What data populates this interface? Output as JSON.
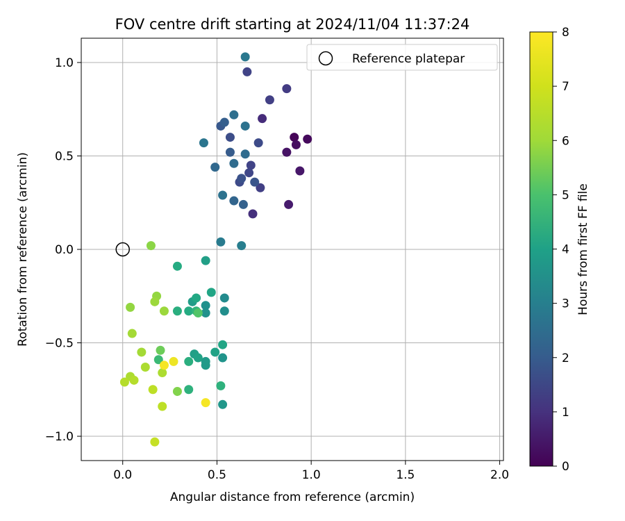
{
  "chart_data": {
    "type": "scatter",
    "title": "FOV centre drift starting at 2024/11/04 11:37:24",
    "xlabel": "Angular distance from reference (arcmin)",
    "ylabel": "Rotation from reference (arcmin)",
    "xlim": [
      -0.22,
      2.02
    ],
    "ylim": [
      -1.13,
      1.13
    ],
    "xticks": [
      0.0,
      0.5,
      1.0,
      1.5,
      2.0
    ],
    "xtick_labels": [
      "0.0",
      "0.5",
      "1.0",
      "1.5",
      "2.0"
    ],
    "yticks": [
      -1.0,
      -0.5,
      0.0,
      0.5,
      1.0
    ],
    "ytick_labels": [
      "−1.0",
      "−0.5",
      "0.0",
      "0.5",
      "1.0"
    ],
    "grid": true,
    "legend": {
      "placement": "top-right",
      "entries": [
        "Reference platepar"
      ]
    },
    "reference_point": {
      "x": 0.0,
      "y": 0.0
    },
    "colorbar": {
      "label": "Hours from first FF file",
      "range": [
        0,
        8
      ],
      "ticks": [
        0,
        1,
        2,
        3,
        4,
        5,
        6,
        7,
        8
      ],
      "tick_labels": [
        "0",
        "1",
        "2",
        "3",
        "4",
        "5",
        "6",
        "7",
        "8"
      ],
      "colormap": "viridis"
    },
    "points": [
      {
        "x": 0.91,
        "y": 0.6,
        "h": 0.1
      },
      {
        "x": 0.98,
        "y": 0.59,
        "h": 0.2
      },
      {
        "x": 0.92,
        "y": 0.56,
        "h": 0.3
      },
      {
        "x": 0.87,
        "y": 0.52,
        "h": 0.4
      },
      {
        "x": 0.94,
        "y": 0.42,
        "h": 0.5
      },
      {
        "x": 0.88,
        "y": 0.24,
        "h": 0.6
      },
      {
        "x": 0.74,
        "y": 0.7,
        "h": 1.0
      },
      {
        "x": 0.69,
        "y": 0.19,
        "h": 1.1
      },
      {
        "x": 0.87,
        "y": 0.86,
        "h": 1.4
      },
      {
        "x": 0.78,
        "y": 0.8,
        "h": 1.5
      },
      {
        "x": 0.73,
        "y": 0.33,
        "h": 1.5
      },
      {
        "x": 0.66,
        "y": 0.95,
        "h": 1.6
      },
      {
        "x": 0.68,
        "y": 0.45,
        "h": 1.6
      },
      {
        "x": 0.67,
        "y": 0.41,
        "h": 1.7
      },
      {
        "x": 0.72,
        "y": 0.57,
        "h": 1.8
      },
      {
        "x": 0.62,
        "y": 0.36,
        "h": 1.8
      },
      {
        "x": 0.57,
        "y": 0.6,
        "h": 1.9
      },
      {
        "x": 0.63,
        "y": 0.38,
        "h": 2.0
      },
      {
        "x": 0.7,
        "y": 0.36,
        "h": 2.1
      },
      {
        "x": 0.52,
        "y": 0.66,
        "h": 2.2
      },
      {
        "x": 0.57,
        "y": 0.52,
        "h": 2.3
      },
      {
        "x": 0.54,
        "y": 0.68,
        "h": 2.4
      },
      {
        "x": 0.64,
        "y": 0.24,
        "h": 2.5
      },
      {
        "x": 0.59,
        "y": 0.26,
        "h": 2.6
      },
      {
        "x": 0.49,
        "y": 0.44,
        "h": 2.7
      },
      {
        "x": 0.59,
        "y": 0.46,
        "h": 2.8
      },
      {
        "x": 0.65,
        "y": 0.51,
        "h": 2.8
      },
      {
        "x": 0.59,
        "y": 0.72,
        "h": 2.9
      },
      {
        "x": 0.65,
        "y": 0.66,
        "h": 3.0
      },
      {
        "x": 0.53,
        "y": 0.29,
        "h": 3.0
      },
      {
        "x": 0.43,
        "y": 0.57,
        "h": 3.1
      },
      {
        "x": 0.65,
        "y": 1.03,
        "h": 3.2
      },
      {
        "x": 0.52,
        "y": 0.04,
        "h": 3.3
      },
      {
        "x": 0.63,
        "y": 0.02,
        "h": 3.4
      },
      {
        "x": 0.54,
        "y": -0.26,
        "h": 3.8
      },
      {
        "x": 0.54,
        "y": -0.33,
        "h": 3.9
      },
      {
        "x": 0.44,
        "y": -0.3,
        "h": 4.0
      },
      {
        "x": 0.44,
        "y": -0.34,
        "h": 4.0
      },
      {
        "x": 0.53,
        "y": -0.58,
        "h": 4.1
      },
      {
        "x": 0.53,
        "y": -0.83,
        "h": 4.2
      },
      {
        "x": 0.44,
        "y": -0.62,
        "h": 4.3
      },
      {
        "x": 0.44,
        "y": -0.6,
        "h": 4.3
      },
      {
        "x": 0.37,
        "y": -0.28,
        "h": 4.4
      },
      {
        "x": 0.44,
        "y": -0.06,
        "h": 4.5
      },
      {
        "x": 0.38,
        "y": -0.56,
        "h": 4.5
      },
      {
        "x": 0.4,
        "y": -0.58,
        "h": 4.6
      },
      {
        "x": 0.49,
        "y": -0.55,
        "h": 4.6
      },
      {
        "x": 0.53,
        "y": -0.51,
        "h": 4.7
      },
      {
        "x": 0.47,
        "y": -0.23,
        "h": 4.7
      },
      {
        "x": 0.39,
        "y": -0.26,
        "h": 4.8
      },
      {
        "x": 0.35,
        "y": -0.33,
        "h": 4.9
      },
      {
        "x": 0.29,
        "y": -0.09,
        "h": 4.9
      },
      {
        "x": 0.29,
        "y": -0.33,
        "h": 5.0
      },
      {
        "x": 0.35,
        "y": -0.6,
        "h": 5.0
      },
      {
        "x": 0.35,
        "y": -0.75,
        "h": 5.1
      },
      {
        "x": 0.52,
        "y": -0.73,
        "h": 5.1
      },
      {
        "x": 0.39,
        "y": -0.33,
        "h": 5.2
      },
      {
        "x": 0.19,
        "y": -0.59,
        "h": 5.4
      },
      {
        "x": 0.4,
        "y": -0.34,
        "h": 5.8
      },
      {
        "x": 0.2,
        "y": -0.54,
        "h": 6.2
      },
      {
        "x": 0.29,
        "y": -0.76,
        "h": 6.5
      },
      {
        "x": 0.15,
        "y": 0.02,
        "h": 6.6
      },
      {
        "x": 0.18,
        "y": -0.25,
        "h": 6.7
      },
      {
        "x": 0.04,
        "y": -0.31,
        "h": 6.7
      },
      {
        "x": 0.17,
        "y": -0.28,
        "h": 6.8
      },
      {
        "x": 0.22,
        "y": -0.33,
        "h": 6.8
      },
      {
        "x": 0.05,
        "y": -0.45,
        "h": 6.9
      },
      {
        "x": 0.1,
        "y": -0.55,
        "h": 6.9
      },
      {
        "x": 0.12,
        "y": -0.63,
        "h": 7.0
      },
      {
        "x": 0.21,
        "y": -0.66,
        "h": 7.0
      },
      {
        "x": 0.04,
        "y": -0.68,
        "h": 7.0
      },
      {
        "x": 0.01,
        "y": -0.71,
        "h": 7.1
      },
      {
        "x": 0.06,
        "y": -0.7,
        "h": 7.1
      },
      {
        "x": 0.16,
        "y": -0.75,
        "h": 7.2
      },
      {
        "x": 0.21,
        "y": -0.84,
        "h": 7.2
      },
      {
        "x": 0.17,
        "y": -1.03,
        "h": 7.3
      },
      {
        "x": 0.27,
        "y": -0.6,
        "h": 7.8
      },
      {
        "x": 0.22,
        "y": -0.62,
        "h": 7.9
      },
      {
        "x": 0.44,
        "y": -0.82,
        "h": 7.9
      }
    ]
  }
}
